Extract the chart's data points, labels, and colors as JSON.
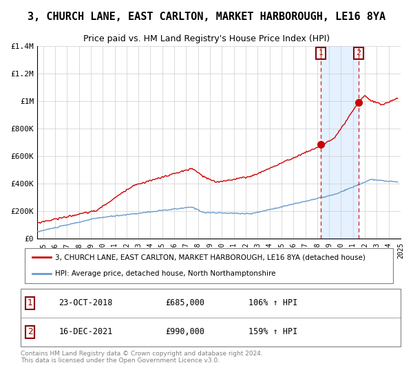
{
  "title": "3, CHURCH LANE, EAST CARLTON, MARKET HARBOROUGH, LE16 8YA",
  "subtitle": "Price paid vs. HM Land Registry's House Price Index (HPI)",
  "title_fontsize": 11,
  "subtitle_fontsize": 9,
  "xmin": 1995.0,
  "xmax": 2025.5,
  "ymin": 0,
  "ymax": 1400000,
  "yticks": [
    0,
    200000,
    400000,
    600000,
    800000,
    1000000,
    1200000,
    1400000
  ],
  "ytick_labels": [
    "£0",
    "£200K",
    "£400K",
    "£600K",
    "£800K",
    "£1M",
    "£1.2M",
    "£1.4M"
  ],
  "plot_bg_color": "#ffffff",
  "grid_color": "#cccccc",
  "red_line_color": "#cc0000",
  "blue_line_color": "#6699cc",
  "sale1_x": 2018.81,
  "sale1_y": 685000,
  "sale2_x": 2021.96,
  "sale2_y": 990000,
  "shade_start": 2018.81,
  "shade_end": 2021.96,
  "legend_label_red": "3, CHURCH LANE, EAST CARLTON, MARKET HARBOROUGH, LE16 8YA (detached house)",
  "legend_label_blue": "HPI: Average price, detached house, North Northamptonshire",
  "footer": "Contains HM Land Registry data © Crown copyright and database right 2024.\nThis data is licensed under the Open Government Licence v3.0.",
  "table_rows": [
    {
      "num": "1",
      "date": "23-OCT-2018",
      "price": "£685,000",
      "hpi": "106% ↑ HPI"
    },
    {
      "num": "2",
      "date": "16-DEC-2021",
      "price": "£990,000",
      "hpi": "159% ↑ HPI"
    }
  ]
}
